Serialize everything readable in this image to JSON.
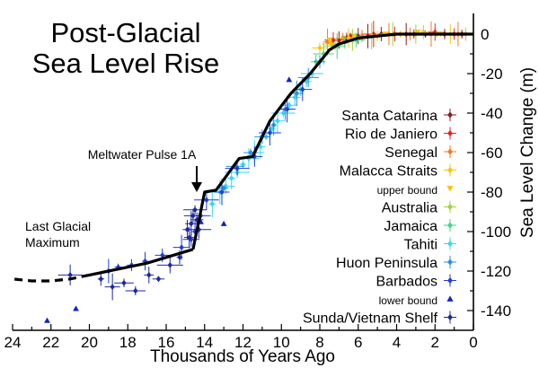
{
  "chart_data": {
    "type": "scatter",
    "title": "Post-Glacial\nSea Level Rise",
    "xlabel": "Thousands of Years Ago",
    "ylabel": "Sea Level Change (m)",
    "xlim": [
      24,
      0
    ],
    "ylim": [
      -150,
      5
    ],
    "x_ticks": [
      24,
      22,
      20,
      18,
      16,
      14,
      12,
      10,
      8,
      6,
      4,
      2,
      0
    ],
    "y_ticks": [
      0,
      -20,
      -40,
      -60,
      -80,
      -100,
      -120,
      -140
    ],
    "annotations": [
      {
        "text": "Meltwater Pulse 1A",
        "x": 14.5,
        "y": -80
      },
      {
        "text": "Last Glacial\nMaximum",
        "x": 22.0,
        "y": -106
      }
    ],
    "curve": {
      "solid": [
        [
          14.6,
          -109
        ],
        [
          17,
          -116
        ],
        [
          19,
          -120
        ],
        [
          20,
          -122
        ],
        [
          21,
          -124
        ],
        [
          22,
          -125
        ],
        [
          23,
          -125
        ]
      ],
      "solid_main": [
        [
          14.6,
          -109
        ],
        [
          14.0,
          -80
        ],
        [
          13.4,
          -79
        ],
        [
          12.8,
          -71
        ],
        [
          12.2,
          -63
        ],
        [
          11.5,
          -62
        ],
        [
          10.6,
          -44
        ],
        [
          9.5,
          -30
        ],
        [
          8.5,
          -20
        ],
        [
          7.5,
          -8
        ],
        [
          7,
          -5
        ],
        [
          6,
          -2
        ],
        [
          5,
          -1
        ],
        [
          4,
          0
        ],
        [
          3,
          0
        ],
        [
          2,
          0
        ],
        [
          1,
          0
        ],
        [
          0,
          0
        ]
      ],
      "dashed": [
        [
          20,
          -122
        ],
        [
          21,
          -124
        ],
        [
          22,
          -125
        ],
        [
          23,
          -125
        ],
        [
          24,
          -124
        ]
      ]
    },
    "series": [
      {
        "name": "Santa Catarina",
        "color": "#8b1a1a",
        "marker": "diamond",
        "points": [
          [
            7.0,
            -3
          ],
          [
            6.6,
            -2
          ],
          [
            6.0,
            -1
          ],
          [
            5.5,
            -1
          ],
          [
            4.8,
            0
          ],
          [
            3.5,
            0
          ],
          [
            2.5,
            0
          ],
          [
            1.5,
            0
          ],
          [
            0.6,
            0
          ]
        ]
      },
      {
        "name": "Rio de Janiero",
        "color": "#e8211f",
        "marker": "diamond",
        "points": [
          [
            7.3,
            -3
          ],
          [
            6.4,
            -1
          ],
          [
            5.2,
            0
          ],
          [
            4.1,
            0
          ],
          [
            3.1,
            0
          ],
          [
            2.0,
            1
          ],
          [
            1.0,
            0
          ]
        ]
      },
      {
        "name": "Senegal",
        "color": "#f27b1c",
        "marker": "diamond",
        "points": [
          [
            7.6,
            -4
          ],
          [
            6.8,
            -2
          ],
          [
            5.8,
            -1
          ],
          [
            4.4,
            0
          ],
          [
            3.3,
            0
          ],
          [
            2.2,
            0
          ],
          [
            0.8,
            0
          ]
        ]
      },
      {
        "name": "Malacca Straits",
        "color": "#f5c40e",
        "marker": "diamond",
        "points": [
          [
            8.0,
            -7
          ],
          [
            7.4,
            -5
          ],
          [
            6.5,
            -2
          ],
          [
            5.0,
            -1
          ],
          [
            3.8,
            0
          ],
          [
            2.6,
            1
          ],
          [
            1.2,
            0
          ]
        ]
      },
      {
        "name": "upper bound",
        "color": "#f5c40e",
        "marker": "triangle-down",
        "points": [
          [
            7.5,
            -3
          ],
          [
            6.2,
            -1
          ],
          [
            4.6,
            0
          ],
          [
            2.9,
            1
          ],
          [
            1.7,
            0
          ]
        ]
      },
      {
        "name": "Australia",
        "color": "#9ed437",
        "marker": "diamond",
        "points": [
          [
            7.2,
            -6
          ],
          [
            6.3,
            -3
          ],
          [
            5.3,
            -1
          ],
          [
            4.2,
            0
          ],
          [
            3.0,
            0
          ],
          [
            1.9,
            0
          ],
          [
            0.4,
            0
          ]
        ]
      },
      {
        "name": "Jamaica",
        "color": "#3ed78e",
        "marker": "diamond",
        "points": [
          [
            8.2,
            -14
          ],
          [
            7.8,
            -10
          ],
          [
            7.1,
            -6
          ],
          [
            6.7,
            -4
          ],
          [
            6.1,
            -3
          ]
        ]
      },
      {
        "name": "Tahiti",
        "color": "#33d8f2",
        "marker": "diamond",
        "points": [
          [
            13.6,
            -86
          ],
          [
            13.2,
            -80
          ],
          [
            12.9,
            -77
          ],
          [
            12.6,
            -73
          ],
          [
            12.3,
            -70
          ],
          [
            12.0,
            -66
          ],
          [
            11.7,
            -63
          ],
          [
            11.4,
            -60
          ],
          [
            11.1,
            -57
          ],
          [
            10.8,
            -52
          ],
          [
            10.5,
            -48
          ],
          [
            10.2,
            -44
          ],
          [
            9.9,
            -40
          ],
          [
            9.6,
            -36
          ],
          [
            9.3,
            -32
          ],
          [
            9.0,
            -28
          ],
          [
            8.7,
            -24
          ],
          [
            8.4,
            -20
          ]
        ]
      },
      {
        "name": "Huon Peninsula",
        "color": "#2a8fe0",
        "marker": "diamond",
        "points": [
          [
            13.0,
            -78
          ],
          [
            12.4,
            -67
          ],
          [
            11.6,
            -60
          ],
          [
            11.0,
            -52
          ],
          [
            10.4,
            -46
          ],
          [
            9.8,
            -38
          ],
          [
            9.2,
            -30
          ],
          [
            8.6,
            -22
          ],
          [
            8.0,
            -14
          ]
        ]
      },
      {
        "name": "Barbados",
        "color": "#1f3fd8",
        "marker": "diamond",
        "points": [
          [
            19.0,
            -120
          ],
          [
            18.5,
            -118
          ],
          [
            17.8,
            -117
          ],
          [
            17.1,
            -115
          ],
          [
            16.2,
            -112
          ],
          [
            15.2,
            -108
          ],
          [
            14.7,
            -104
          ],
          [
            14.5,
            -100
          ],
          [
            14.2,
            -92
          ],
          [
            13.9,
            -84
          ],
          [
            13.1,
            -80
          ],
          [
            12.3,
            -68
          ],
          [
            11.4,
            -62
          ],
          [
            10.6,
            -50
          ],
          [
            9.7,
            -38
          ],
          [
            8.9,
            -28
          ]
        ]
      },
      {
        "name": "lower bound",
        "color": "#1521c4",
        "marker": "triangle-up",
        "points": [
          [
            22.2,
            -145
          ],
          [
            20.7,
            -139
          ],
          [
            14.2,
            -95
          ],
          [
            13.0,
            -96
          ],
          [
            9.6,
            -23
          ]
        ]
      },
      {
        "name": "Sunda/Vietnam Shelf",
        "color": "#1e2a9b",
        "marker": "diamond",
        "points": [
          [
            21.0,
            -122
          ],
          [
            19.4,
            -124
          ],
          [
            18.8,
            -128
          ],
          [
            18.2,
            -126
          ],
          [
            17.6,
            -130
          ],
          [
            16.9,
            -122
          ],
          [
            16.4,
            -124
          ],
          [
            15.8,
            -117
          ],
          [
            15.3,
            -113
          ],
          [
            14.9,
            -99
          ],
          [
            14.8,
            -103
          ],
          [
            14.7,
            -96
          ],
          [
            14.6,
            -92
          ],
          [
            14.5,
            -89
          ],
          [
            14.4,
            -94
          ],
          [
            14.3,
            -99
          ]
        ]
      }
    ]
  }
}
